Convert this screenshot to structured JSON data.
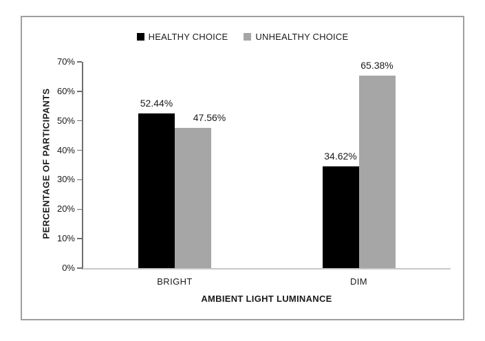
{
  "chart_data": {
    "type": "bar",
    "title": "",
    "categories": [
      "BRIGHT",
      "DIM"
    ],
    "series": [
      {
        "name": "HEALTHY CHOICE",
        "color": "#000000",
        "values": [
          52.44,
          34.62
        ],
        "labels": [
          "52.44%",
          "34.62%"
        ]
      },
      {
        "name": "UNHEALTHY CHOICE",
        "color": "#a6a6a6",
        "values": [
          47.56,
          65.38
        ],
        "labels": [
          "47.56%",
          "65.38%"
        ]
      }
    ],
    "xlabel": "AMBIENT LIGHT LUMINANCE",
    "ylabel": "PERCENTAGE OF PARTICIPANTS",
    "ylim": [
      0,
      70
    ],
    "ytick_step": 10,
    "yticks": [
      "0%",
      "10%",
      "20%",
      "30%",
      "40%",
      "50%",
      "60%",
      "70%"
    ],
    "legend_position": "top",
    "grid": false,
    "frame_border_color": "#9e9e9e",
    "y_axis_color": "#6e6e6e",
    "x_axis_color": "#c8c8c8"
  }
}
